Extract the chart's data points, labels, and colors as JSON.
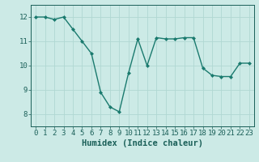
{
  "x": [
    0,
    1,
    2,
    3,
    4,
    5,
    6,
    7,
    8,
    9,
    10,
    11,
    12,
    13,
    14,
    15,
    16,
    17,
    18,
    19,
    20,
    21,
    22,
    23
  ],
  "y": [
    12.0,
    12.0,
    11.9,
    12.0,
    11.5,
    11.0,
    10.5,
    8.9,
    8.3,
    8.1,
    9.7,
    11.1,
    10.0,
    11.15,
    11.1,
    11.1,
    11.15,
    11.15,
    9.9,
    9.6,
    9.55,
    9.55,
    10.1,
    10.1
  ],
  "line_color": "#1a7a6e",
  "marker": "D",
  "marker_size": 2.0,
  "bg_color": "#cceae6",
  "grid_color": "#b0d8d2",
  "axis_color": "#1a5f58",
  "xlabel": "Humidex (Indice chaleur)",
  "xlim": [
    -0.5,
    23.5
  ],
  "ylim": [
    7.5,
    12.5
  ],
  "yticks": [
    8,
    9,
    10,
    11,
    12
  ],
  "xticks": [
    0,
    1,
    2,
    3,
    4,
    5,
    6,
    7,
    8,
    9,
    10,
    11,
    12,
    13,
    14,
    15,
    16,
    17,
    18,
    19,
    20,
    21,
    22,
    23
  ],
  "xlabel_fontsize": 7.5,
  "tick_fontsize": 6.5,
  "line_width": 1.0
}
